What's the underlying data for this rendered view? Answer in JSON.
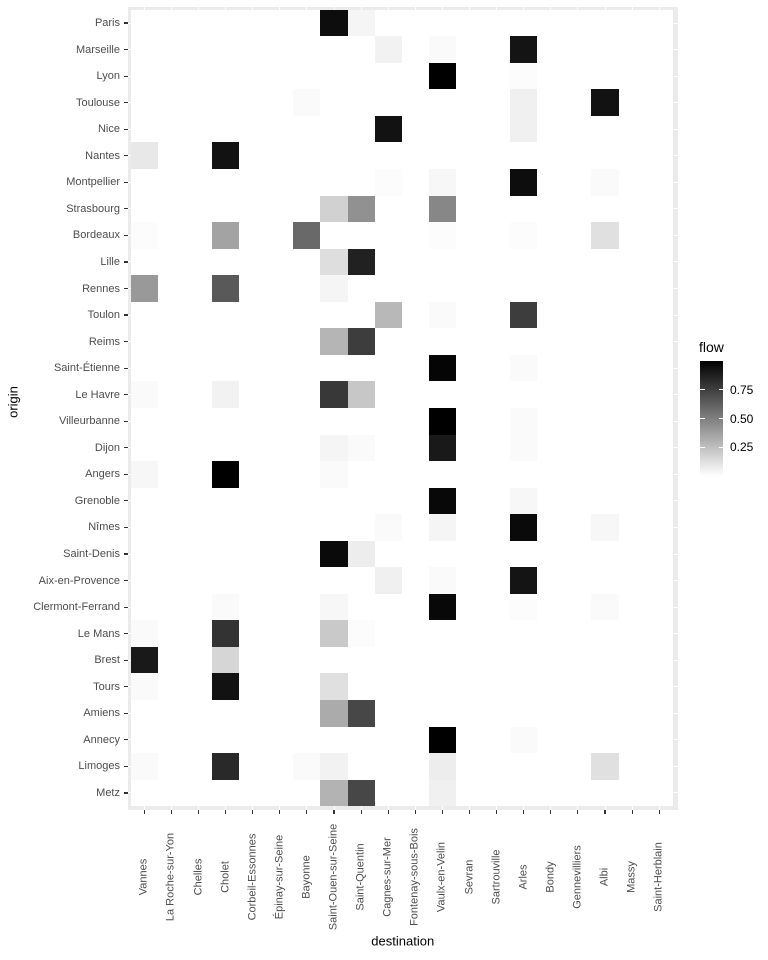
{
  "chart_data": {
    "type": "heatmap",
    "title": "",
    "xlabel": "destination",
    "ylabel": "origin",
    "x_categories": [
      "Vannes",
      "La Roche-sur-Yon",
      "Chelles",
      "Cholet",
      "Corbeil-Essonnes",
      "Épinay-sur-Seine",
      "Bayonne",
      "Saint-Ouen-sur-Seine",
      "Saint-Quentin",
      "Cagnes-sur-Mer",
      "Fontenay-sous-Bois",
      "Vaulx-en-Velin",
      "Sevran",
      "Sartrouville",
      "Arles",
      "Bondy",
      "Gennevilliers",
      "Albi",
      "Massy",
      "Saint-Herblain"
    ],
    "y_categories": [
      "Paris",
      "Marseille",
      "Lyon",
      "Toulouse",
      "Nice",
      "Nantes",
      "Montpellier",
      "Strasbourg",
      "Bordeaux",
      "Lille",
      "Rennes",
      "Toulon",
      "Reims",
      "Saint-Étienne",
      "Le Havre",
      "Villeurbanne",
      "Dijon",
      "Angers",
      "Grenoble",
      "Nîmes",
      "Saint-Denis",
      "Aix-en-Provence",
      "Clermont-Ferrand",
      "Le Mans",
      "Brest",
      "Tours",
      "Amiens",
      "Annecy",
      "Limoges",
      "Metz"
    ],
    "legend": {
      "title": "flow",
      "position": "right",
      "tick_labels": [
        "0.75",
        "0.50",
        "0.25"
      ],
      "tick_values": [
        0.75,
        0.5,
        0.25
      ],
      "min": 0,
      "max": 1,
      "low_color": "#ffffff",
      "high_color": "#000000"
    },
    "grid": "on",
    "colors": {
      "panel_background": "#ebebeb",
      "grid_line": "#ffffff",
      "tile_zero": "#ffffff",
      "axis_text": "#4d4d4d",
      "axis_title": "#000000",
      "tick_mark": "#333333",
      "legend_text": "#000000"
    },
    "cells": [
      {
        "origin": "Paris",
        "destination": "Saint-Ouen-sur-Seine",
        "flow": 0.95
      },
      {
        "origin": "Paris",
        "destination": "Saint-Quentin",
        "flow": 0.04
      },
      {
        "origin": "Marseille",
        "destination": "Cagnes-sur-Mer",
        "flow": 0.05
      },
      {
        "origin": "Marseille",
        "destination": "Vaulx-en-Velin",
        "flow": 0.02
      },
      {
        "origin": "Marseille",
        "destination": "Arles",
        "flow": 0.92
      },
      {
        "origin": "Lyon",
        "destination": "Vaulx-en-Velin",
        "flow": 1.0
      },
      {
        "origin": "Lyon",
        "destination": "Arles",
        "flow": 0.01
      },
      {
        "origin": "Toulouse",
        "destination": "Bayonne",
        "flow": 0.02
      },
      {
        "origin": "Toulouse",
        "destination": "Arles",
        "flow": 0.06
      },
      {
        "origin": "Toulouse",
        "destination": "Albi",
        "flow": 0.93
      },
      {
        "origin": "Nice",
        "destination": "Cagnes-sur-Mer",
        "flow": 0.93
      },
      {
        "origin": "Nice",
        "destination": "Arles",
        "flow": 0.06
      },
      {
        "origin": "Nantes",
        "destination": "Vannes",
        "flow": 0.09
      },
      {
        "origin": "Nantes",
        "destination": "Cholet",
        "flow": 0.93
      },
      {
        "origin": "Montpellier",
        "destination": "Cagnes-sur-Mer",
        "flow": 0.01
      },
      {
        "origin": "Montpellier",
        "destination": "Vaulx-en-Velin",
        "flow": 0.03
      },
      {
        "origin": "Montpellier",
        "destination": "Arles",
        "flow": 0.95
      },
      {
        "origin": "Montpellier",
        "destination": "Albi",
        "flow": 0.02
      },
      {
        "origin": "Strasbourg",
        "destination": "Saint-Ouen-sur-Seine",
        "flow": 0.18
      },
      {
        "origin": "Strasbourg",
        "destination": "Saint-Quentin",
        "flow": 0.43
      },
      {
        "origin": "Strasbourg",
        "destination": "Vaulx-en-Velin",
        "flow": 0.47
      },
      {
        "origin": "Bordeaux",
        "destination": "Vannes",
        "flow": 0.01
      },
      {
        "origin": "Bordeaux",
        "destination": "Cholet",
        "flow": 0.36
      },
      {
        "origin": "Bordeaux",
        "destination": "Bayonne",
        "flow": 0.59
      },
      {
        "origin": "Bordeaux",
        "destination": "Vaulx-en-Velin",
        "flow": 0.01
      },
      {
        "origin": "Bordeaux",
        "destination": "Arles",
        "flow": 0.01
      },
      {
        "origin": "Bordeaux",
        "destination": "Albi",
        "flow": 0.12
      },
      {
        "origin": "Lille",
        "destination": "Saint-Ouen-sur-Seine",
        "flow": 0.13
      },
      {
        "origin": "Lille",
        "destination": "Saint-Quentin",
        "flow": 0.87
      },
      {
        "origin": "Rennes",
        "destination": "Vannes",
        "flow": 0.4
      },
      {
        "origin": "Rennes",
        "destination": "Cholet",
        "flow": 0.65
      },
      {
        "origin": "Rennes",
        "destination": "Saint-Ouen-sur-Seine",
        "flow": 0.04
      },
      {
        "origin": "Toulon",
        "destination": "Cagnes-sur-Mer",
        "flow": 0.28
      },
      {
        "origin": "Toulon",
        "destination": "Vaulx-en-Velin",
        "flow": 0.02
      },
      {
        "origin": "Toulon",
        "destination": "Arles",
        "flow": 0.76
      },
      {
        "origin": "Reims",
        "destination": "Saint-Ouen-sur-Seine",
        "flow": 0.29
      },
      {
        "origin": "Reims",
        "destination": "Saint-Quentin",
        "flow": 0.76
      },
      {
        "origin": "Saint-Étienne",
        "destination": "Vaulx-en-Velin",
        "flow": 0.98
      },
      {
        "origin": "Saint-Étienne",
        "destination": "Arles",
        "flow": 0.02
      },
      {
        "origin": "Le Havre",
        "destination": "Vannes",
        "flow": 0.02
      },
      {
        "origin": "Le Havre",
        "destination": "Cholet",
        "flow": 0.05
      },
      {
        "origin": "Le Havre",
        "destination": "Saint-Ouen-sur-Seine",
        "flow": 0.78
      },
      {
        "origin": "Le Havre",
        "destination": "Saint-Quentin",
        "flow": 0.22
      },
      {
        "origin": "Villeurbanne",
        "destination": "Vaulx-en-Velin",
        "flow": 1.0
      },
      {
        "origin": "Villeurbanne",
        "destination": "Arles",
        "flow": 0.02
      },
      {
        "origin": "Dijon",
        "destination": "Saint-Ouen-sur-Seine",
        "flow": 0.04
      },
      {
        "origin": "Dijon",
        "destination": "Saint-Quentin",
        "flow": 0.02
      },
      {
        "origin": "Dijon",
        "destination": "Vaulx-en-Velin",
        "flow": 0.9
      },
      {
        "origin": "Dijon",
        "destination": "Arles",
        "flow": 0.02
      },
      {
        "origin": "Angers",
        "destination": "Vannes",
        "flow": 0.03
      },
      {
        "origin": "Angers",
        "destination": "Cholet",
        "flow": 1.0
      },
      {
        "origin": "Angers",
        "destination": "Saint-Ouen-sur-Seine",
        "flow": 0.02
      },
      {
        "origin": "Grenoble",
        "destination": "Vaulx-en-Velin",
        "flow": 0.97
      },
      {
        "origin": "Grenoble",
        "destination": "Arles",
        "flow": 0.03
      },
      {
        "origin": "Nîmes",
        "destination": "Cagnes-sur-Mer",
        "flow": 0.02
      },
      {
        "origin": "Nîmes",
        "destination": "Vaulx-en-Velin",
        "flow": 0.04
      },
      {
        "origin": "Nîmes",
        "destination": "Arles",
        "flow": 0.96
      },
      {
        "origin": "Nîmes",
        "destination": "Albi",
        "flow": 0.03
      },
      {
        "origin": "Saint-Denis",
        "destination": "Saint-Ouen-sur-Seine",
        "flow": 0.96
      },
      {
        "origin": "Saint-Denis",
        "destination": "Saint-Quentin",
        "flow": 0.07
      },
      {
        "origin": "Aix-en-Provence",
        "destination": "Cagnes-sur-Mer",
        "flow": 0.06
      },
      {
        "origin": "Aix-en-Provence",
        "destination": "Vaulx-en-Velin",
        "flow": 0.02
      },
      {
        "origin": "Aix-en-Provence",
        "destination": "Arles",
        "flow": 0.92
      },
      {
        "origin": "Clermont-Ferrand",
        "destination": "Cholet",
        "flow": 0.02
      },
      {
        "origin": "Clermont-Ferrand",
        "destination": "Saint-Ouen-sur-Seine",
        "flow": 0.03
      },
      {
        "origin": "Clermont-Ferrand",
        "destination": "Vaulx-en-Velin",
        "flow": 0.97
      },
      {
        "origin": "Clermont-Ferrand",
        "destination": "Arles",
        "flow": 0.01
      },
      {
        "origin": "Clermont-Ferrand",
        "destination": "Albi",
        "flow": 0.02
      },
      {
        "origin": "Le Mans",
        "destination": "Vannes",
        "flow": 0.02
      },
      {
        "origin": "Le Mans",
        "destination": "Cholet",
        "flow": 0.8
      },
      {
        "origin": "Le Mans",
        "destination": "Saint-Ouen-sur-Seine",
        "flow": 0.21
      },
      {
        "origin": "Le Mans",
        "destination": "Saint-Quentin",
        "flow": 0.01
      },
      {
        "origin": "Brest",
        "destination": "Vannes",
        "flow": 0.9
      },
      {
        "origin": "Brest",
        "destination": "Cholet",
        "flow": 0.16
      },
      {
        "origin": "Tours",
        "destination": "Vannes",
        "flow": 0.02
      },
      {
        "origin": "Tours",
        "destination": "Cholet",
        "flow": 0.93
      },
      {
        "origin": "Tours",
        "destination": "Saint-Ouen-sur-Seine",
        "flow": 0.12
      },
      {
        "origin": "Amiens",
        "destination": "Saint-Ouen-sur-Seine",
        "flow": 0.33
      },
      {
        "origin": "Amiens",
        "destination": "Saint-Quentin",
        "flow": 0.72
      },
      {
        "origin": "Annecy",
        "destination": "Vaulx-en-Velin",
        "flow": 1.0
      },
      {
        "origin": "Annecy",
        "destination": "Arles",
        "flow": 0.02
      },
      {
        "origin": "Limoges",
        "destination": "Vannes",
        "flow": 0.02
      },
      {
        "origin": "Limoges",
        "destination": "Cholet",
        "flow": 0.84
      },
      {
        "origin": "Limoges",
        "destination": "Bayonne",
        "flow": 0.02
      },
      {
        "origin": "Limoges",
        "destination": "Saint-Ouen-sur-Seine",
        "flow": 0.05
      },
      {
        "origin": "Limoges",
        "destination": "Vaulx-en-Velin",
        "flow": 0.07
      },
      {
        "origin": "Limoges",
        "destination": "Albi",
        "flow": 0.12
      },
      {
        "origin": "Metz",
        "destination": "Saint-Ouen-sur-Seine",
        "flow": 0.3
      },
      {
        "origin": "Metz",
        "destination": "Saint-Quentin",
        "flow": 0.72
      },
      {
        "origin": "Metz",
        "destination": "Vaulx-en-Velin",
        "flow": 0.06
      }
    ]
  }
}
